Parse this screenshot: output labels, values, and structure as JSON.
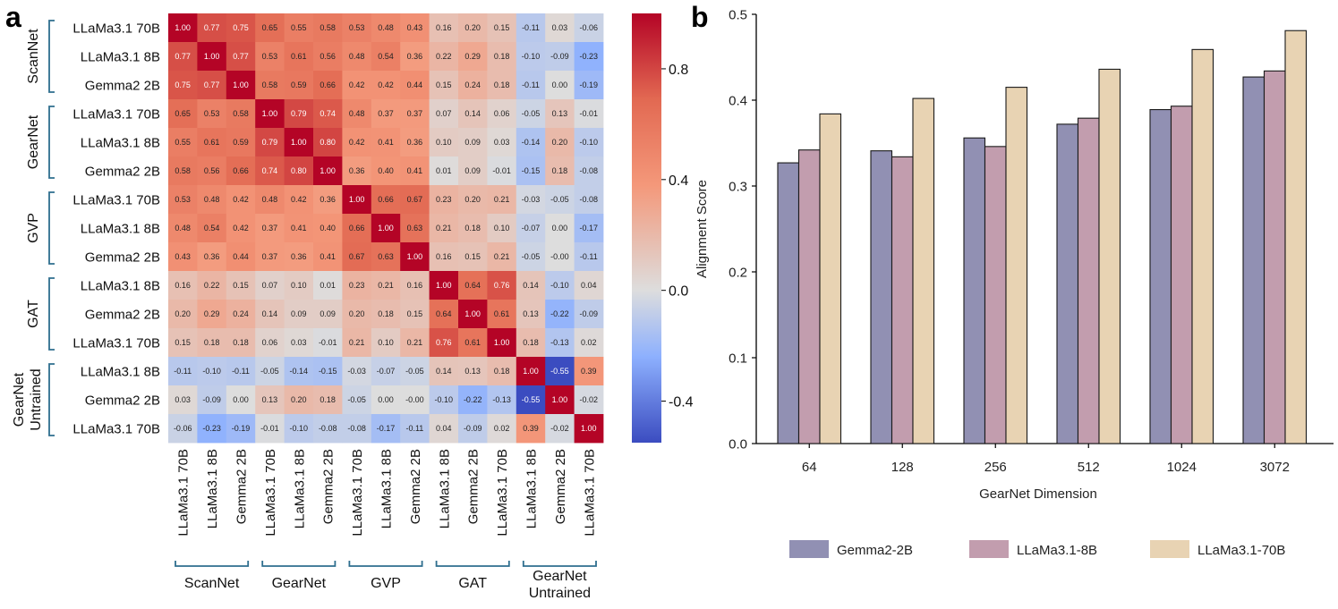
{
  "chart_data": [
    {
      "type": "heatmap",
      "panel_label": "a",
      "row_labels": [
        "LLaMa3.1 70B",
        "LLaMa3.1 8B",
        "Gemma2 2B",
        "LLaMa3.1 70B",
        "LLaMa3.1 8B",
        "Gemma2 2B",
        "LLaMa3.1 70B",
        "LLaMa3.1 8B",
        "Gemma2 2B",
        "LLaMa3.1 8B",
        "Gemma2 2B",
        "LLaMa3.1 70B",
        "LLaMa3.1 8B",
        "Gemma2 2B",
        "LLaMa3.1 70B"
      ],
      "col_labels": [
        "LLaMa3.1 70B",
        "LLaMa3.1 8B",
        "Gemma2 2B",
        "LLaMa3.1 70B",
        "LLaMa3.1 8B",
        "Gemma2 2B",
        "LLaMa3.1 70B",
        "LLaMa3.1 8B",
        "Gemma2 2B",
        "LLaMa3.1 8B",
        "Gemma2 2B",
        "LLaMa3.1 70B",
        "LLaMa3.1 8B",
        "Gemma2 2B",
        "LLaMa3.1 70B"
      ],
      "row_groups": [
        {
          "label": "ScanNet",
          "start": 0,
          "end": 2
        },
        {
          "label": "GearNet",
          "start": 3,
          "end": 5
        },
        {
          "label": "GVP",
          "start": 6,
          "end": 8
        },
        {
          "label": "GAT",
          "start": 9,
          "end": 11
        },
        {
          "label": "GearNet Untrained",
          "start": 12,
          "end": 14
        }
      ],
      "col_groups": [
        {
          "label": "ScanNet",
          "start": 0,
          "end": 2
        },
        {
          "label": "GearNet",
          "start": 3,
          "end": 5
        },
        {
          "label": "GVP",
          "start": 6,
          "end": 8
        },
        {
          "label": "GAT",
          "start": 9,
          "end": 11
        },
        {
          "label": "GearNet Untrained",
          "start": 12,
          "end": 14
        }
      ],
      "values": [
        [
          1.0,
          0.77,
          0.75,
          0.65,
          0.55,
          0.58,
          0.53,
          0.48,
          0.43,
          0.16,
          0.2,
          0.15,
          -0.11,
          0.03,
          -0.06
        ],
        [
          0.77,
          1.0,
          0.77,
          0.53,
          0.61,
          0.56,
          0.48,
          0.54,
          0.36,
          0.22,
          0.29,
          0.18,
          -0.1,
          -0.09,
          -0.23
        ],
        [
          0.75,
          0.77,
          1.0,
          0.58,
          0.59,
          0.66,
          0.42,
          0.42,
          0.44,
          0.15,
          0.24,
          0.18,
          -0.11,
          0.0,
          -0.19
        ],
        [
          0.65,
          0.53,
          0.58,
          1.0,
          0.79,
          0.74,
          0.48,
          0.37,
          0.37,
          0.07,
          0.14,
          0.06,
          -0.05,
          0.13,
          -0.01
        ],
        [
          0.55,
          0.61,
          0.59,
          0.79,
          1.0,
          0.8,
          0.42,
          0.41,
          0.36,
          0.1,
          0.09,
          0.03,
          -0.14,
          0.2,
          -0.1
        ],
        [
          0.58,
          0.56,
          0.66,
          0.74,
          0.8,
          1.0,
          0.36,
          0.4,
          0.41,
          0.01,
          0.09,
          -0.01,
          -0.15,
          0.18,
          -0.08
        ],
        [
          0.53,
          0.48,
          0.42,
          0.48,
          0.42,
          0.36,
          1.0,
          0.66,
          0.67,
          0.23,
          0.2,
          0.21,
          -0.03,
          -0.05,
          -0.08
        ],
        [
          0.48,
          0.54,
          0.42,
          0.37,
          0.41,
          0.4,
          0.66,
          1.0,
          0.63,
          0.21,
          0.18,
          0.1,
          -0.07,
          0.0,
          -0.17
        ],
        [
          0.43,
          0.36,
          0.44,
          0.37,
          0.36,
          0.41,
          0.67,
          0.63,
          1.0,
          0.16,
          0.15,
          0.21,
          -0.05,
          -0.0,
          -0.11
        ],
        [
          0.16,
          0.22,
          0.15,
          0.07,
          0.1,
          0.01,
          0.23,
          0.21,
          0.16,
          1.0,
          0.64,
          0.76,
          0.14,
          -0.1,
          0.04
        ],
        [
          0.2,
          0.29,
          0.24,
          0.14,
          0.09,
          0.09,
          0.2,
          0.18,
          0.15,
          0.64,
          1.0,
          0.61,
          0.13,
          -0.22,
          -0.09
        ],
        [
          0.15,
          0.18,
          0.18,
          0.06,
          0.03,
          -0.01,
          0.21,
          0.1,
          0.21,
          0.76,
          0.61,
          1.0,
          0.18,
          -0.13,
          0.02
        ],
        [
          -0.11,
          -0.1,
          -0.11,
          -0.05,
          -0.14,
          -0.15,
          -0.03,
          -0.07,
          -0.05,
          0.14,
          0.13,
          0.18,
          1.0,
          -0.55,
          0.39
        ],
        [
          0.03,
          -0.09,
          0.0,
          0.13,
          0.2,
          0.18,
          -0.05,
          0.0,
          -0.0,
          -0.1,
          -0.22,
          -0.13,
          -0.55,
          1.0,
          -0.02
        ],
        [
          -0.06,
          -0.23,
          -0.19,
          -0.01,
          -0.1,
          -0.08,
          -0.08,
          -0.17,
          -0.11,
          0.04,
          -0.09,
          0.02,
          0.39,
          -0.02,
          1.0
        ]
      ],
      "value_labels": [
        [
          "1.00",
          "0.77",
          "0.75",
          "0.65",
          "0.55",
          "0.58",
          "0.53",
          "0.48",
          "0.43",
          "0.16",
          "0.20",
          "0.15",
          "-0.11",
          "0.03",
          "-0.06"
        ],
        [
          "0.77",
          "1.00",
          "0.77",
          "0.53",
          "0.61",
          "0.56",
          "0.48",
          "0.54",
          "0.36",
          "0.22",
          "0.29",
          "0.18",
          "-0.10",
          "-0.09",
          "-0.23"
        ],
        [
          "0.75",
          "0.77",
          "1.00",
          "0.58",
          "0.59",
          "0.66",
          "0.42",
          "0.42",
          "0.44",
          "0.15",
          "0.24",
          "0.18",
          "-0.11",
          "0.00",
          "-0.19"
        ],
        [
          "0.65",
          "0.53",
          "0.58",
          "1.00",
          "0.79",
          "0.74",
          "0.48",
          "0.37",
          "0.37",
          "0.07",
          "0.14",
          "0.06",
          "-0.05",
          "0.13",
          "-0.01"
        ],
        [
          "0.55",
          "0.61",
          "0.59",
          "0.79",
          "1.00",
          "0.80",
          "0.42",
          "0.41",
          "0.36",
          "0.10",
          "0.09",
          "0.03",
          "-0.14",
          "0.20",
          "-0.10"
        ],
        [
          "0.58",
          "0.56",
          "0.66",
          "0.74",
          "0.80",
          "1.00",
          "0.36",
          "0.40",
          "0.41",
          "0.01",
          "0.09",
          "-0.01",
          "-0.15",
          "0.18",
          "-0.08"
        ],
        [
          "0.53",
          "0.48",
          "0.42",
          "0.48",
          "0.42",
          "0.36",
          "1.00",
          "0.66",
          "0.67",
          "0.23",
          "0.20",
          "0.21",
          "-0.03",
          "-0.05",
          "-0.08"
        ],
        [
          "0.48",
          "0.54",
          "0.42",
          "0.37",
          "0.41",
          "0.40",
          "0.66",
          "1.00",
          "0.63",
          "0.21",
          "0.18",
          "0.10",
          "-0.07",
          "0.00",
          "-0.17"
        ],
        [
          "0.43",
          "0.36",
          "0.44",
          "0.37",
          "0.36",
          "0.41",
          "0.67",
          "0.63",
          "1.00",
          "0.16",
          "0.15",
          "0.21",
          "-0.05",
          "-0.00",
          "-0.11"
        ],
        [
          "0.16",
          "0.22",
          "0.15",
          "0.07",
          "0.10",
          "0.01",
          "0.23",
          "0.21",
          "0.16",
          "1.00",
          "0.64",
          "0.76",
          "0.14",
          "-0.10",
          "0.04"
        ],
        [
          "0.20",
          "0.29",
          "0.24",
          "0.14",
          "0.09",
          "0.09",
          "0.20",
          "0.18",
          "0.15",
          "0.64",
          "1.00",
          "0.61",
          "0.13",
          "-0.22",
          "-0.09"
        ],
        [
          "0.15",
          "0.18",
          "0.18",
          "0.06",
          "0.03",
          "-0.01",
          "0.21",
          "0.10",
          "0.21",
          "0.76",
          "0.61",
          "1.00",
          "0.18",
          "-0.13",
          "0.02"
        ],
        [
          "-0.11",
          "-0.10",
          "-0.11",
          "-0.05",
          "-0.14",
          "-0.15",
          "-0.03",
          "-0.07",
          "-0.05",
          "0.14",
          "0.13",
          "0.18",
          "1.00",
          "-0.55",
          "0.39"
        ],
        [
          "0.03",
          "-0.09",
          "0.00",
          "0.13",
          "0.20",
          "0.18",
          "-0.05",
          "0.00",
          "-0.00",
          "-0.10",
          "-0.22",
          "-0.13",
          "-0.55",
          "1.00",
          "-0.02"
        ],
        [
          "-0.06",
          "-0.23",
          "-0.19",
          "-0.01",
          "-0.10",
          "-0.08",
          "-0.08",
          "-0.17",
          "-0.11",
          "0.04",
          "-0.09",
          "0.02",
          "0.39",
          "-0.02",
          "1.00"
        ]
      ],
      "colorbar": {
        "range": [
          -0.55,
          1.0
        ],
        "ticks": [
          0.8,
          0.4,
          0.0,
          -0.4
        ],
        "tick_labels": [
          "0.8",
          "0.4",
          "0.0",
          "-0.4"
        ],
        "colormap": "coolwarm",
        "color_stops": [
          "#3b4cc0",
          "#dddddd",
          "#b40426"
        ]
      }
    },
    {
      "type": "bar",
      "panel_label": "b",
      "categories": [
        "64",
        "128",
        "256",
        "512",
        "1024",
        "3072"
      ],
      "series": [
        {
          "name": "Gemma2-2B",
          "color": "#9190b3",
          "values": [
            0.327,
            0.341,
            0.356,
            0.372,
            0.389,
            0.427
          ]
        },
        {
          "name": "LLaMa3.1-8B",
          "color": "#c29dae",
          "values": [
            0.342,
            0.334,
            0.346,
            0.379,
            0.393,
            0.434
          ]
        },
        {
          "name": "LLaMa3.1-70B",
          "color": "#e8d3b3",
          "values": [
            0.384,
            0.402,
            0.415,
            0.436,
            0.459,
            0.481
          ]
        }
      ],
      "xlabel": "GearNet Dimension",
      "ylabel": "Alignment Score",
      "ylim": [
        0.0,
        0.5
      ],
      "yticks": [
        0.0,
        0.1,
        0.2,
        0.3,
        0.4,
        0.5
      ],
      "ytick_labels": [
        "0.0",
        "0.1",
        "0.2",
        "0.3",
        "0.4",
        "0.5"
      ],
      "legend_position": "bottom",
      "grid": false
    }
  ]
}
